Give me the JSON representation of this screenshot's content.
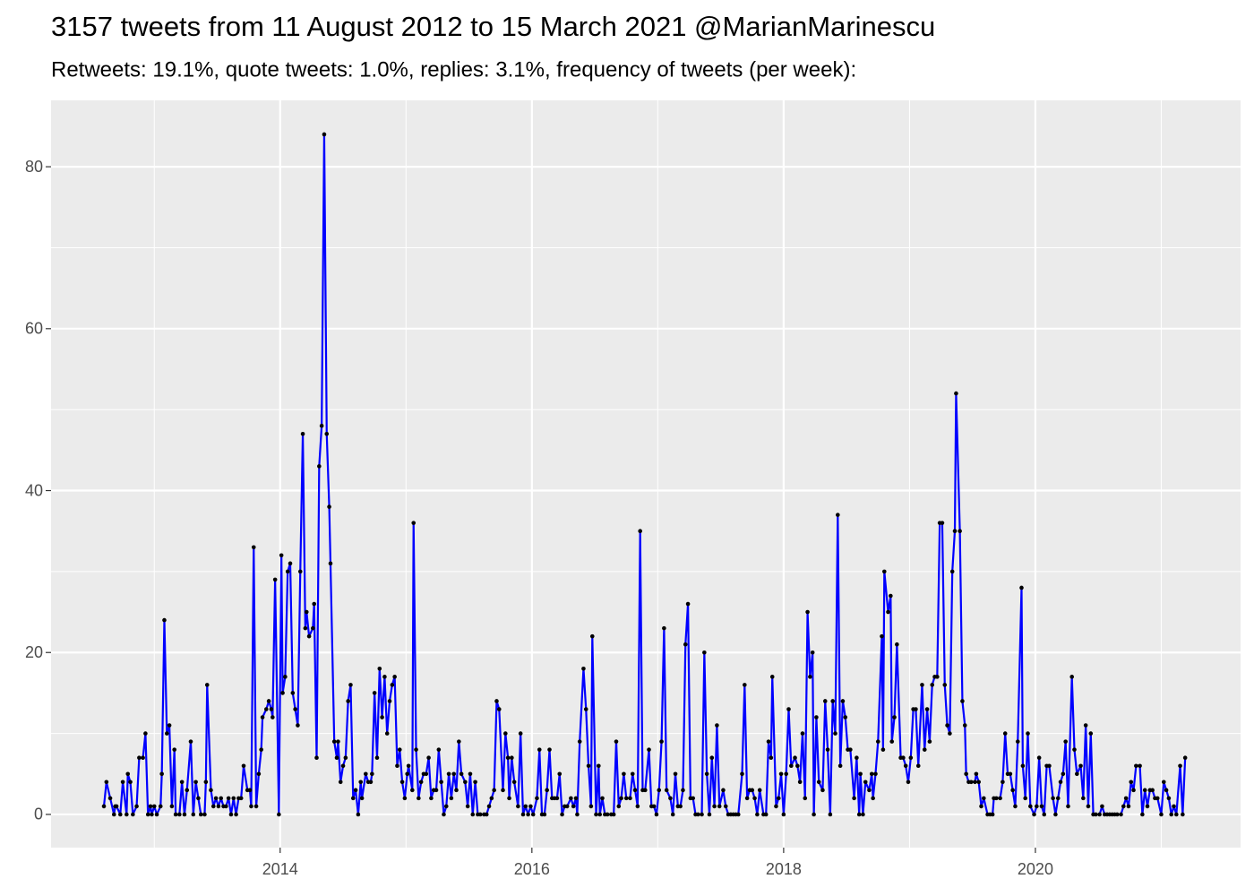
{
  "chart_data": {
    "type": "line",
    "title": "3157 tweets from 11 August 2012 to 15 March 2021 @MarianMarinescu",
    "subtitle": "Retweets: 19.1%, quote tweets: 1.0%, replies: 3.1%, frequency of tweets (per week):",
    "color": "#0000ff",
    "marker_color": "#000000",
    "grid": true,
    "xlim": [
      2012.18,
      2021.63
    ],
    "ylim": [
      -4.1,
      88.2
    ],
    "xticks": [
      2014,
      2016,
      2018,
      2020
    ],
    "yticks": [
      0,
      20,
      40,
      60,
      80
    ],
    "x_minor_ticks": [
      2013,
      2015,
      2017,
      2019,
      2021
    ],
    "y_minor_ticks": [
      10,
      30,
      50,
      70
    ],
    "x": [
      2012.6,
      2012.62,
      2012.65,
      2012.68,
      2012.69,
      2012.7,
      2012.73,
      2012.75,
      2012.78,
      2012.79,
      2012.81,
      2012.83,
      2012.86,
      2012.88,
      2012.91,
      2012.93,
      2012.95,
      2012.97,
      2012.98,
      2013.0,
      2013.02,
      2013.05,
      2013.06,
      2013.08,
      2013.1,
      2013.12,
      2013.14,
      2013.16,
      2013.17,
      2013.2,
      2013.22,
      2013.24,
      2013.26,
      2013.29,
      2013.31,
      2013.33,
      2013.35,
      2013.37,
      2013.4,
      2013.41,
      2013.42,
      2013.45,
      2013.47,
      2013.49,
      2013.51,
      2013.53,
      2013.55,
      2013.57,
      2013.59,
      2013.61,
      2013.63,
      2013.65,
      2013.67,
      2013.69,
      2013.71,
      2013.74,
      2013.76,
      2013.77,
      2013.79,
      2013.81,
      2013.83,
      2013.85,
      2013.86,
      2013.89,
      2013.91,
      2013.93,
      2013.94,
      2013.96,
      2013.99,
      2014.01,
      2014.02,
      2014.04,
      2014.06,
      2014.08,
      2014.1,
      2014.12,
      2014.14,
      2014.16,
      2014.18,
      2014.2,
      2014.21,
      2014.23,
      2014.26,
      2014.27,
      2014.29,
      2014.31,
      2014.33,
      2014.35,
      2014.37,
      2014.39,
      2014.4,
      2014.43,
      2014.45,
      2014.46,
      2014.48,
      2014.5,
      2014.52,
      2014.54,
      2014.56,
      2014.58,
      2014.6,
      2014.62,
      2014.64,
      2014.65,
      2014.68,
      2014.7,
      2014.72,
      2014.73,
      2014.75,
      2014.77,
      2014.79,
      2014.81,
      2014.83,
      2014.85,
      2014.87,
      2014.89,
      2014.91,
      2014.93,
      2014.95,
      2014.97,
      2014.99,
      2015.01,
      2015.02,
      2015.05,
      2015.06,
      2015.08,
      2015.1,
      2015.12,
      2015.14,
      2015.16,
      2015.18,
      2015.2,
      2015.22,
      2015.24,
      2015.26,
      2015.28,
      2015.3,
      2015.32,
      2015.34,
      2015.36,
      2015.38,
      2015.4,
      2015.42,
      2015.44,
      2015.47,
      2015.49,
      2015.51,
      2015.53,
      2015.55,
      2015.57,
      2015.59,
      2015.62,
      2015.64,
      2015.66,
      2015.68,
      2015.7,
      2015.72,
      2015.74,
      2015.77,
      2015.79,
      2015.81,
      2015.82,
      2015.84,
      2015.86,
      2015.89,
      2015.91,
      2015.93,
      2015.95,
      2015.97,
      2015.99,
      2016.01,
      2016.04,
      2016.06,
      2016.08,
      2016.1,
      2016.12,
      2016.14,
      2016.16,
      2016.18,
      2016.2,
      2016.22,
      2016.24,
      2016.26,
      2016.28,
      2016.31,
      2016.33,
      2016.35,
      2016.36,
      2016.38,
      2016.41,
      2016.43,
      2016.45,
      2016.47,
      2016.48,
      2016.51,
      2016.53,
      2016.54,
      2016.56,
      2016.58,
      2016.6,
      2016.63,
      2016.65,
      2016.67,
      2016.69,
      2016.71,
      2016.73,
      2016.75,
      2016.78,
      2016.8,
      2016.82,
      2016.84,
      2016.86,
      2016.88,
      2016.9,
      2016.93,
      2016.95,
      2016.97,
      2016.99,
      2017.01,
      2017.03,
      2017.05,
      2017.07,
      2017.1,
      2017.12,
      2017.14,
      2017.16,
      2017.18,
      2017.2,
      2017.22,
      2017.24,
      2017.26,
      2017.28,
      2017.3,
      2017.32,
      2017.35,
      2017.37,
      2017.39,
      2017.41,
      2017.43,
      2017.45,
      2017.47,
      2017.49,
      2017.52,
      2017.54,
      2017.56,
      2017.58,
      2017.6,
      2017.62,
      2017.64,
      2017.67,
      2017.69,
      2017.71,
      2017.73,
      2017.75,
      2017.77,
      2017.79,
      2017.81,
      2017.84,
      2017.86,
      2017.88,
      2017.9,
      2017.91,
      2017.94,
      2017.96,
      2017.98,
      2018.0,
      2018.02,
      2018.04,
      2018.06,
      2018.09,
      2018.11,
      2018.13,
      2018.15,
      2018.17,
      2018.19,
      2018.21,
      2018.23,
      2018.24,
      2018.26,
      2018.28,
      2018.31,
      2018.33,
      2018.35,
      2018.37,
      2018.39,
      2018.41,
      2018.43,
      2018.45,
      2018.47,
      2018.49,
      2018.51,
      2018.53,
      2018.56,
      2018.58,
      2018.6,
      2018.61,
      2018.63,
      2018.65,
      2018.68,
      2018.7,
      2018.71,
      2018.73,
      2018.75,
      2018.78,
      2018.79,
      2018.8,
      2018.83,
      2018.85,
      2018.86,
      2018.88,
      2018.9,
      2018.93,
      2018.95,
      2018.97,
      2018.99,
      2019.01,
      2019.03,
      2019.05,
      2019.07,
      2019.1,
      2019.12,
      2019.14,
      2019.16,
      2019.18,
      2019.2,
      2019.22,
      2019.24,
      2019.26,
      2019.28,
      2019.3,
      2019.32,
      2019.34,
      2019.36,
      2019.37,
      2019.4,
      2019.42,
      2019.44,
      2019.45,
      2019.47,
      2019.49,
      2019.52,
      2019.53,
      2019.55,
      2019.57,
      2019.59,
      2019.62,
      2019.64,
      2019.66,
      2019.67,
      2019.69,
      2019.72,
      2019.74,
      2019.76,
      2019.78,
      2019.8,
      2019.82,
      2019.84,
      2019.86,
      2019.89,
      2019.9,
      2019.92,
      2019.94,
      2019.96,
      2019.99,
      2020.01,
      2020.03,
      2020.05,
      2020.07,
      2020.09,
      2020.11,
      2020.14,
      2020.16,
      2020.18,
      2020.2,
      2020.22,
      2020.24,
      2020.26,
      2020.29,
      2020.31,
      2020.33,
      2020.36,
      2020.38,
      2020.4,
      2020.42,
      2020.44,
      2020.46,
      2020.48,
      2020.51,
      2020.53,
      2020.55,
      2020.57,
      2020.59,
      2020.61,
      2020.63,
      2020.65,
      2020.68,
      2020.7,
      2020.72,
      2020.74,
      2020.76,
      2020.78,
      2020.8,
      2020.83,
      2020.85,
      2020.87,
      2020.89,
      2020.91,
      2020.93,
      2020.95,
      2020.97,
      2021.0,
      2021.02,
      2021.04,
      2021.06,
      2021.08,
      2021.1,
      2021.12,
      2021.15,
      2021.17,
      2021.19
    ],
    "values": [
      1,
      4,
      2,
      0,
      1,
      1,
      0,
      4,
      0,
      5,
      4,
      0,
      1,
      7,
      7,
      10,
      0,
      1,
      0,
      1,
      0,
      1,
      5,
      24,
      10,
      11,
      1,
      8,
      0,
      0,
      4,
      0,
      3,
      9,
      0,
      4,
      2,
      0,
      0,
      4,
      16,
      3,
      1,
      2,
      1,
      2,
      1,
      1,
      2,
      0,
      2,
      0,
      2,
      2,
      6,
      3,
      3,
      1,
      33,
      1,
      5,
      8,
      12,
      13,
      14,
      13,
      12,
      29,
      0,
      32,
      15,
      17,
      30,
      31,
      15,
      13,
      11,
      30,
      47,
      23,
      25,
      22,
      23,
      26,
      7,
      43,
      48,
      84,
      47,
      38,
      31,
      9,
      7,
      9,
      4,
      6,
      7,
      14,
      16,
      2,
      3,
      0,
      4,
      2,
      5,
      4,
      4,
      5,
      15,
      7,
      18,
      12,
      17,
      10,
      14,
      16,
      17,
      6,
      8,
      4,
      2,
      5,
      6,
      3,
      36,
      8,
      2,
      4,
      5,
      5,
      7,
      2,
      3,
      3,
      8,
      4,
      0,
      1,
      5,
      2,
      5,
      3,
      9,
      5,
      4,
      1,
      5,
      0,
      4,
      0,
      0,
      0,
      0,
      1,
      2,
      3,
      14,
      13,
      3,
      10,
      7,
      2,
      7,
      4,
      1,
      10,
      0,
      1,
      0,
      1,
      0,
      2,
      8,
      0,
      0,
      3,
      8,
      2,
      2,
      2,
      5,
      0,
      1,
      1,
      2,
      1,
      2,
      0,
      9,
      18,
      13,
      6,
      1,
      22,
      0,
      6,
      0,
      2,
      0,
      0,
      0,
      0,
      9,
      1,
      2,
      5,
      2,
      2,
      5,
      3,
      1,
      35,
      3,
      3,
      8,
      1,
      1,
      0,
      3,
      9,
      23,
      3,
      2,
      0,
      5,
      1,
      1,
      3,
      21,
      26,
      2,
      2,
      0,
      0,
      0,
      20,
      5,
      0,
      7,
      1,
      11,
      1,
      3,
      1,
      0,
      0,
      0,
      0,
      0,
      5,
      16,
      2,
      3,
      3,
      2,
      0,
      3,
      0,
      0,
      9,
      7,
      17,
      1,
      2,
      5,
      0,
      5,
      13,
      6,
      7,
      6,
      4,
      10,
      2,
      25,
      17,
      20,
      0,
      12,
      4,
      3,
      14,
      8,
      0,
      14,
      10,
      37,
      6,
      14,
      12,
      8,
      8,
      2,
      7,
      0,
      5,
      0,
      4,
      3,
      5,
      2,
      5,
      9,
      22,
      8,
      30,
      25,
      27,
      9,
      12,
      21,
      7,
      7,
      6,
      4,
      7,
      13,
      13,
      6,
      16,
      8,
      13,
      9,
      16,
      17,
      17,
      36,
      36,
      16,
      11,
      10,
      30,
      35,
      52,
      35,
      14,
      11,
      5,
      4,
      4,
      4,
      5,
      4,
      1,
      2,
      0,
      0,
      0,
      2,
      2,
      2,
      4,
      10,
      5,
      5,
      3,
      1,
      9,
      28,
      6,
      2,
      10,
      1,
      0,
      1,
      7,
      1,
      0,
      6,
      6,
      2,
      0,
      2,
      4,
      5,
      9,
      1,
      17,
      8,
      5,
      6,
      2,
      11,
      1,
      10,
      0,
      0,
      0,
      1,
      0,
      0,
      0,
      0,
      0,
      0,
      0,
      1,
      2,
      1,
      4,
      3,
      6,
      6,
      0,
      3,
      1,
      3,
      3,
      2,
      2,
      0,
      4,
      3,
      2,
      0,
      1,
      0,
      6,
      0,
      7
    ]
  }
}
